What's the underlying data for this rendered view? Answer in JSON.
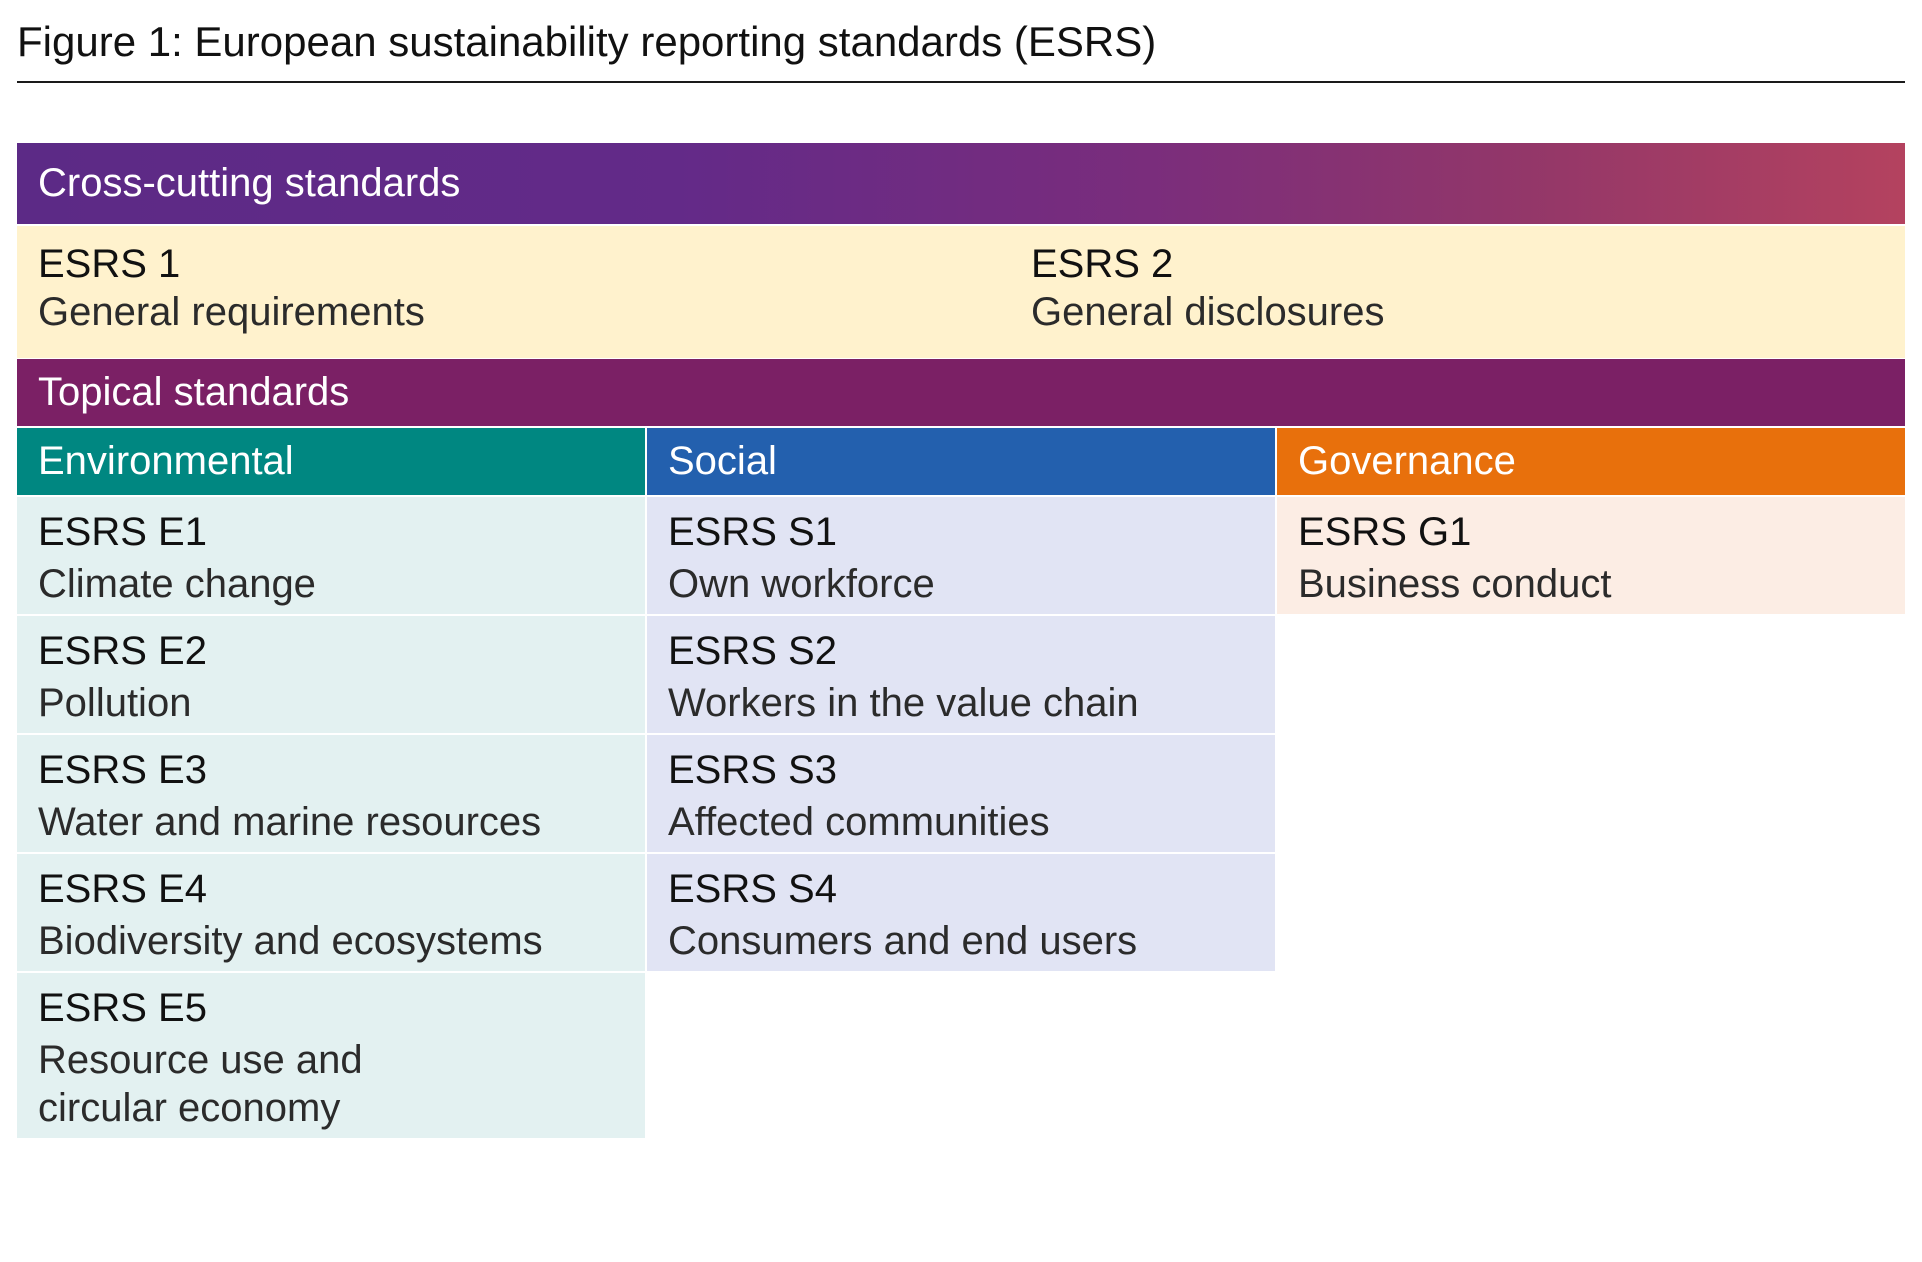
{
  "figure": {
    "title": "Figure 1: European sustainability reporting standards (ESRS)"
  },
  "cross_cutting": {
    "header": "Cross-cutting standards",
    "items": [
      {
        "code": "ESRS 1",
        "name": "General requirements"
      },
      {
        "code": "ESRS 2",
        "name": "General disclosures"
      }
    ]
  },
  "topical": {
    "header": "Topical standards",
    "columns": [
      {
        "header": "Environmental",
        "items": [
          {
            "code": "ESRS E1",
            "name": "Climate change"
          },
          {
            "code": "ESRS E2",
            "name": "Pollution"
          },
          {
            "code": "ESRS E3",
            "name": "Water and marine resources"
          },
          {
            "code": "ESRS E4",
            "name": "Biodiversity and ecosystems"
          },
          {
            "code": "ESRS E5",
            "name_line1": "Resource use and",
            "name_line2": "circular economy"
          }
        ]
      },
      {
        "header": "Social",
        "items": [
          {
            "code": "ESRS S1",
            "name": "Own workforce"
          },
          {
            "code": "ESRS S2",
            "name": "Workers in the value chain"
          },
          {
            "code": "ESRS S3",
            "name": "Affected communities"
          },
          {
            "code": "ESRS S4",
            "name": "Consumers and end users"
          }
        ]
      },
      {
        "header": "Governance",
        "items": [
          {
            "code": "ESRS G1",
            "name": "Business conduct"
          }
        ]
      }
    ]
  },
  "colors": {
    "cross_gradient_start": "#5c2a86",
    "cross_gradient_end": "#b4425f",
    "cross_row_bg": "#fff2cd",
    "topical_band": "#7b2065",
    "environmental": "#008781",
    "environmental_bg": "#e3f1f1",
    "social": "#2360ae",
    "social_bg": "#e1e4f4",
    "governance": "#e8700c",
    "governance_bg": "#fcede4"
  }
}
